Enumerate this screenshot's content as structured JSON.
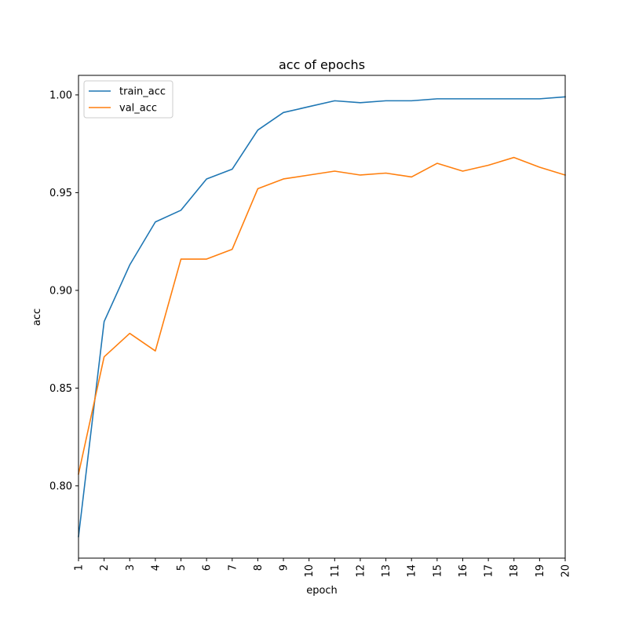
{
  "chart_data": {
    "type": "line",
    "title": "acc of epochs",
    "xlabel": "epoch",
    "ylabel": "acc",
    "x": [
      1,
      2,
      3,
      4,
      5,
      6,
      7,
      8,
      9,
      10,
      11,
      12,
      13,
      14,
      15,
      16,
      17,
      18,
      19,
      20
    ],
    "xticks": [
      "1",
      "2",
      "3",
      "4",
      "5",
      "6",
      "7",
      "8",
      "9",
      "10",
      "11",
      "12",
      "13",
      "14",
      "15",
      "16",
      "17",
      "18",
      "19",
      "20"
    ],
    "xlim": [
      1,
      20
    ],
    "ylim": [
      0.763,
      1.01
    ],
    "yticks": [
      0.8,
      0.85,
      0.9,
      0.95,
      1.0
    ],
    "ytick_labels": [
      "0.80",
      "0.85",
      "0.90",
      "0.95",
      "1.00"
    ],
    "grid": false,
    "legend_position": "upper-left",
    "series": [
      {
        "name": "train_acc",
        "color": "#1f77b4",
        "values": [
          0.774,
          0.884,
          0.913,
          0.935,
          0.941,
          0.957,
          0.962,
          0.982,
          0.991,
          0.994,
          0.997,
          0.996,
          0.997,
          0.997,
          0.998,
          0.998,
          0.998,
          0.998,
          0.998,
          0.999
        ]
      },
      {
        "name": "val_acc",
        "color": "#ff7f0e",
        "values": [
          0.806,
          0.866,
          0.878,
          0.869,
          0.916,
          0.916,
          0.921,
          0.952,
          0.957,
          0.959,
          0.961,
          0.959,
          0.96,
          0.958,
          0.965,
          0.961,
          0.964,
          0.968,
          0.963,
          0.959
        ]
      }
    ]
  }
}
